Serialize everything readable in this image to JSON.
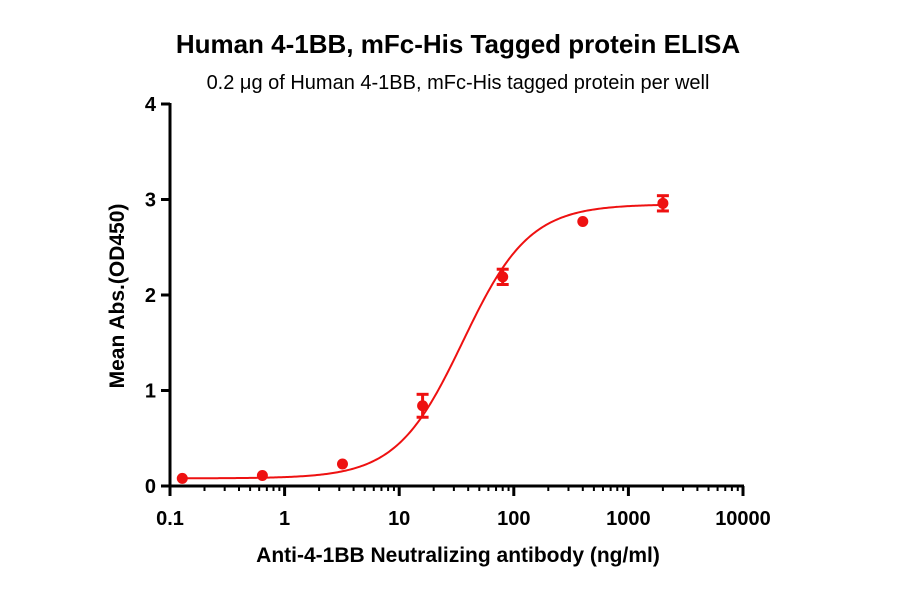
{
  "chart_data": {
    "type": "scatter",
    "title": "Human 4-1BB, mFc-His Tagged protein ELISA",
    "subtitle": "0.2 μg of Human 4-1BB, mFc-His tagged protein per well",
    "xlabel": "Anti-4-1BB Neutralizing antibody (ng/ml)",
    "ylabel": "Mean Abs.(OD450)",
    "xscale": "log",
    "xlim": [
      0.1,
      10000
    ],
    "ylim": [
      0,
      4
    ],
    "x_ticks": [
      0.1,
      1,
      10,
      100,
      1000,
      10000
    ],
    "x_tick_labels": [
      "0.1",
      "1",
      "10",
      "100",
      "1000",
      "10000"
    ],
    "y_ticks": [
      0,
      1,
      2,
      3,
      4
    ],
    "y_tick_labels": [
      "0",
      "1",
      "2",
      "3",
      "4"
    ],
    "grid": false,
    "color": "#ee1111",
    "series": [
      {
        "points": [
          {
            "x": 0.128,
            "y": 0.08,
            "err": 0.01
          },
          {
            "x": 0.64,
            "y": 0.11,
            "err": 0.01
          },
          {
            "x": 3.2,
            "y": 0.23,
            "err": 0.01
          },
          {
            "x": 16,
            "y": 0.84,
            "err": 0.12
          },
          {
            "x": 80,
            "y": 2.19,
            "err": 0.08
          },
          {
            "x": 400,
            "y": 2.77,
            "err": 0.01
          },
          {
            "x": 2000,
            "y": 2.96,
            "err": 0.08
          }
        ],
        "fit": {
          "model": "4PL",
          "bottom": 0.08,
          "top": 2.95,
          "ec50": 36,
          "hill": 1.5
        }
      }
    ]
  }
}
